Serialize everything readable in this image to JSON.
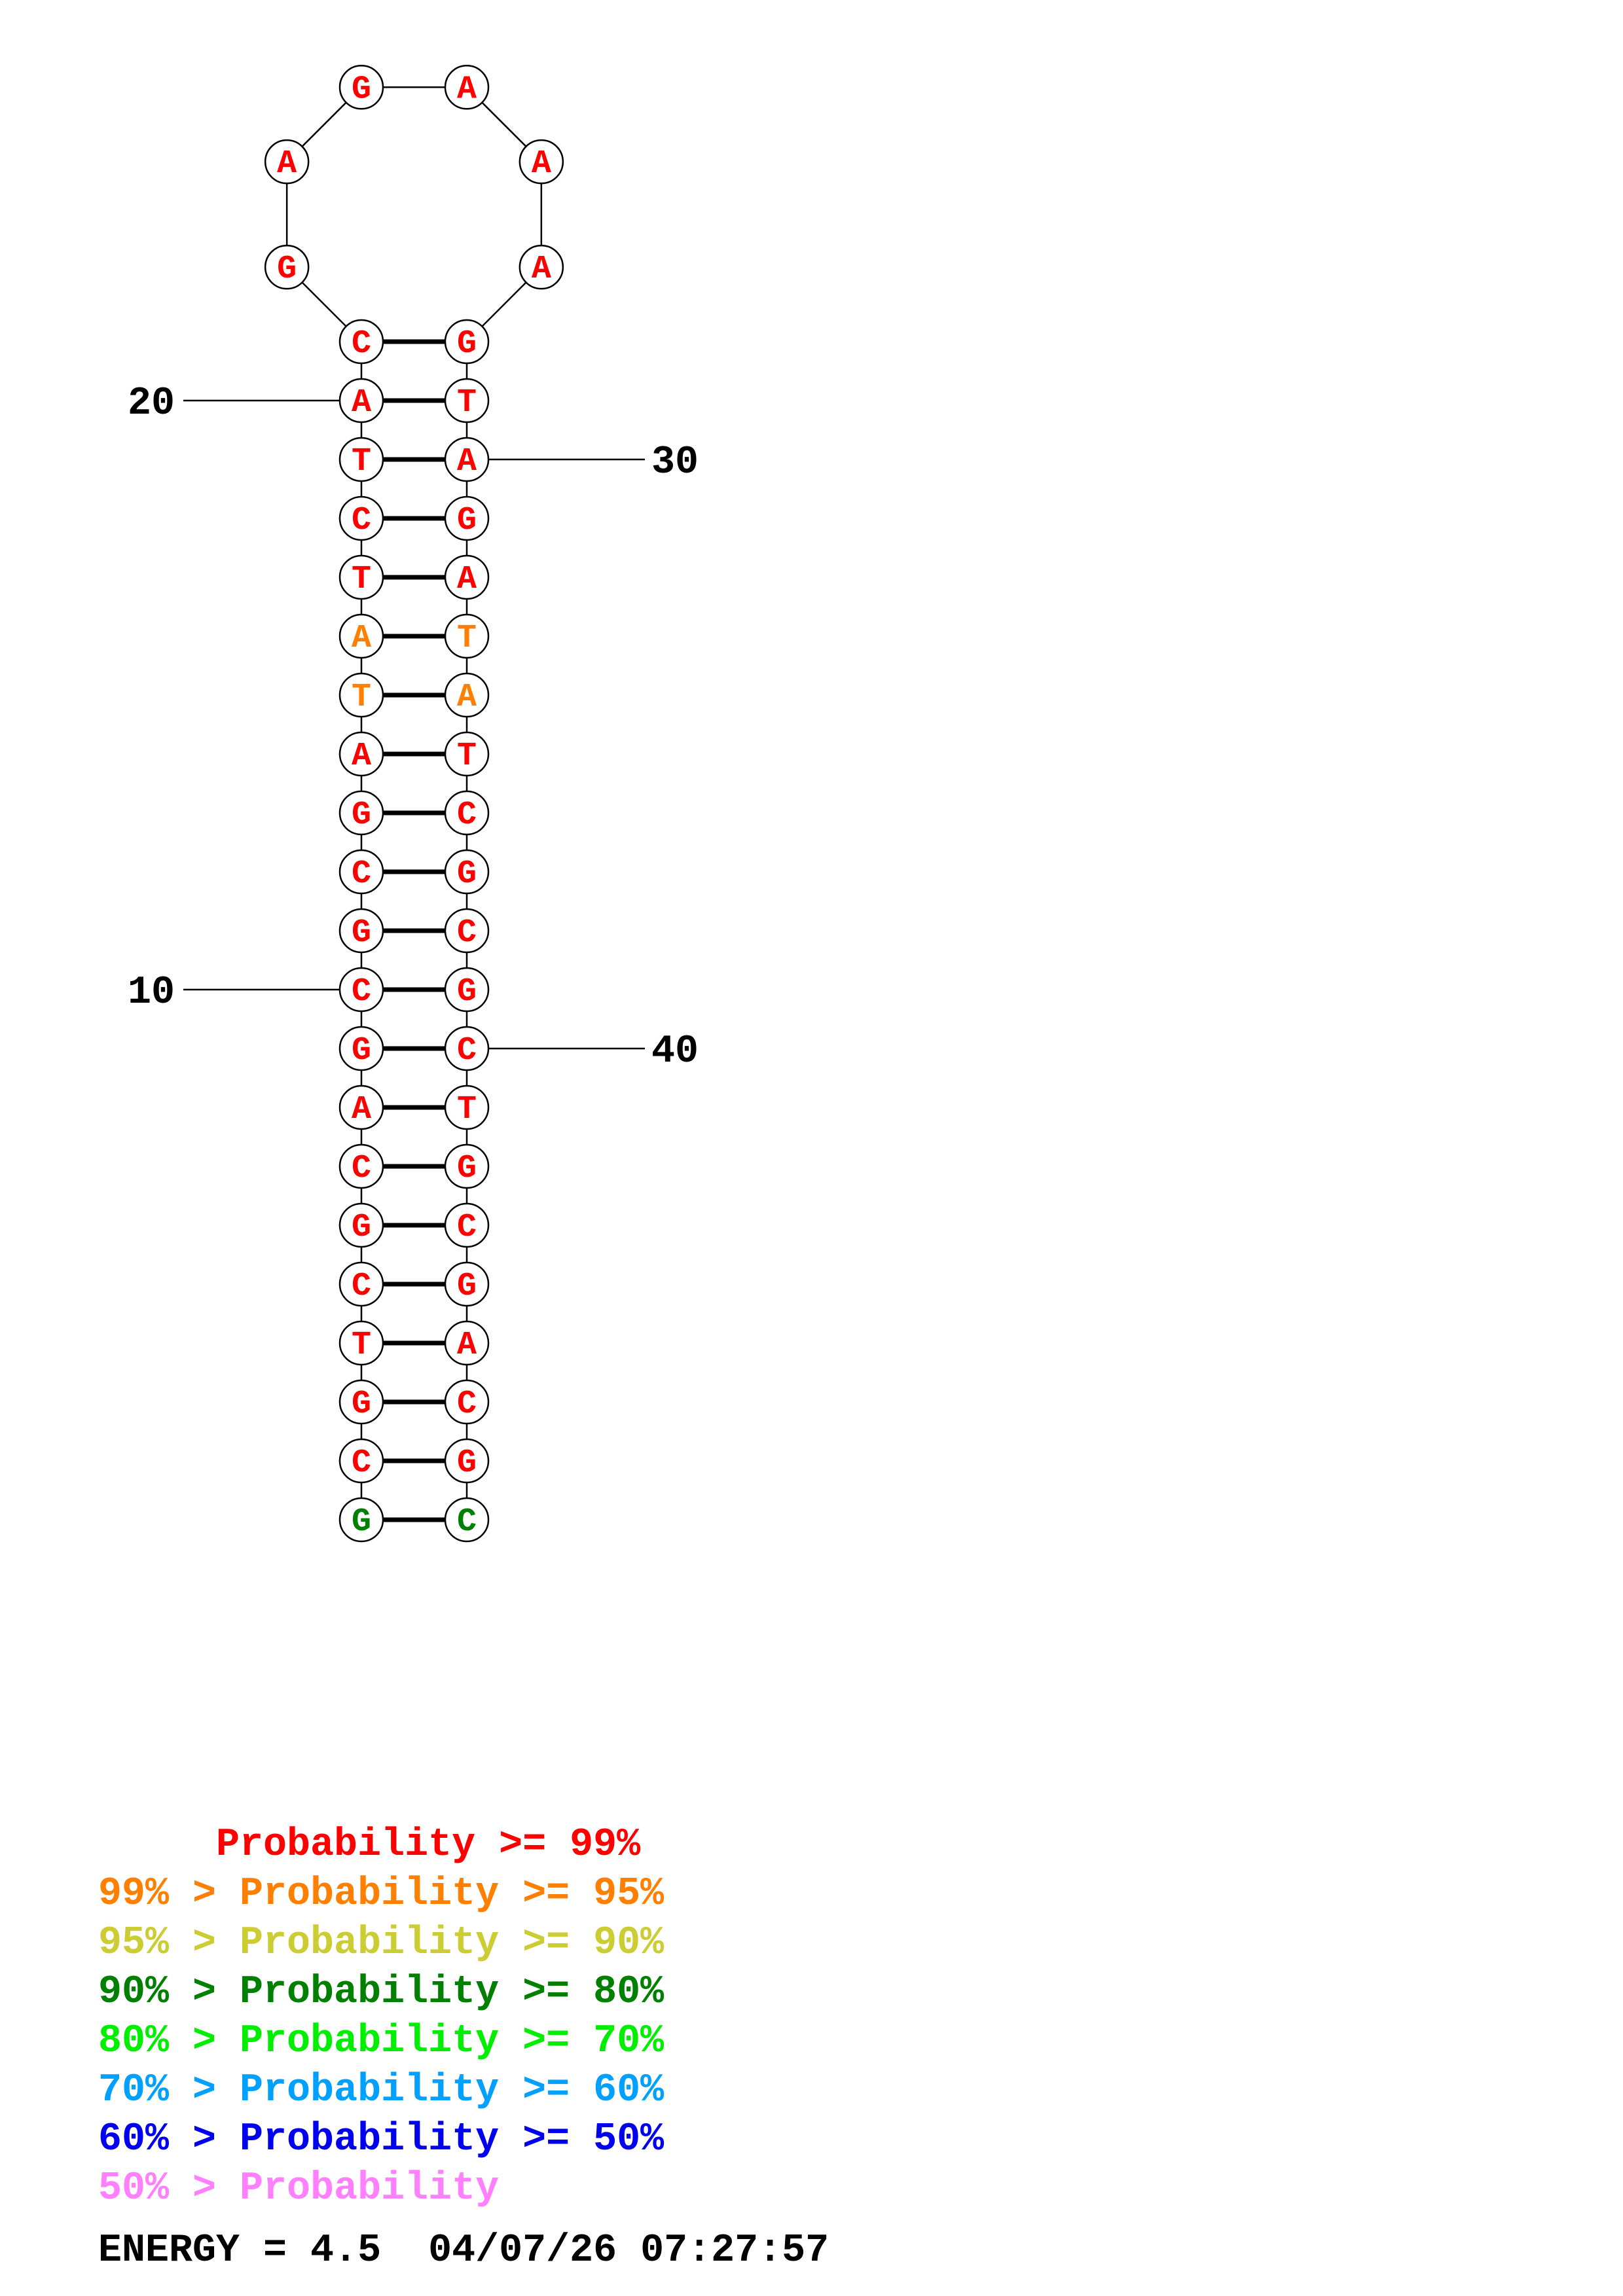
{
  "structure": {
    "sequence": "GCGTCGCAGCGCGATATCTACGAGAAAGTAGATATCGCGCTGCGACGC",
    "pairs": [
      [
        1,
        48
      ],
      [
        2,
        47
      ],
      [
        3,
        46
      ],
      [
        4,
        45
      ],
      [
        5,
        44
      ],
      [
        6,
        43
      ],
      [
        7,
        42
      ],
      [
        8,
        41
      ],
      [
        9,
        40
      ],
      [
        10,
        39
      ],
      [
        11,
        38
      ],
      [
        12,
        37
      ],
      [
        13,
        36
      ],
      [
        14,
        35
      ],
      [
        15,
        34
      ],
      [
        16,
        33
      ],
      [
        17,
        32
      ],
      [
        18,
        31
      ],
      [
        19,
        30
      ],
      [
        20,
        29
      ],
      [
        21,
        28
      ]
    ],
    "position_labels": [
      {
        "pos": 10,
        "text": "10"
      },
      {
        "pos": 20,
        "text": "20"
      },
      {
        "pos": 30,
        "text": "30"
      },
      {
        "pos": 40,
        "text": "40"
      }
    ],
    "nucleotide_colors": [
      "#008000",
      "#ff0000",
      "#ff0000",
      "#ff0000",
      "#ff0000",
      "#ff0000",
      "#ff0000",
      "#ff0000",
      "#ff0000",
      "#ff0000",
      "#ff0000",
      "#ff0000",
      "#ff0000",
      "#ff0000",
      "#ff8000",
      "#ff8000",
      "#ff0000",
      "#ff0000",
      "#ff0000",
      "#ff0000",
      "#ff0000",
      "#ff0000",
      "#ff0000",
      "#ff0000",
      "#ff0000",
      "#ff0000",
      "#ff0000",
      "#ff0000",
      "#ff0000",
      "#ff0000",
      "#ff0000",
      "#ff0000",
      "#ff8000",
      "#ff8000",
      "#ff0000",
      "#ff0000",
      "#ff0000",
      "#ff0000",
      "#ff0000",
      "#ff0000",
      "#ff0000",
      "#ff0000",
      "#ff0000",
      "#ff0000",
      "#ff0000",
      "#ff0000",
      "#ff0000",
      "#008000"
    ]
  },
  "legend": [
    {
      "text": "     Probability >= 99%",
      "color": "#ff0000"
    },
    {
      "text": "99% > Probability >= 95%",
      "color": "#ff8000"
    },
    {
      "text": "95% > Probability >= 90%",
      "color": "#cccc33"
    },
    {
      "text": "90% > Probability >= 80%",
      "color": "#008000"
    },
    {
      "text": "80% > Probability >= 70%",
      "color": "#00ee00"
    },
    {
      "text": "70% > Probability >= 60%",
      "color": "#00a0ff"
    },
    {
      "text": "60% > Probability >= 50%",
      "color": "#0000ee"
    },
    {
      "text": "50% > Probability",
      "color": "#ff80ff"
    }
  ],
  "footer": {
    "energy_text": "ENERGY = 4.5  04/07/26 07:27:57"
  }
}
